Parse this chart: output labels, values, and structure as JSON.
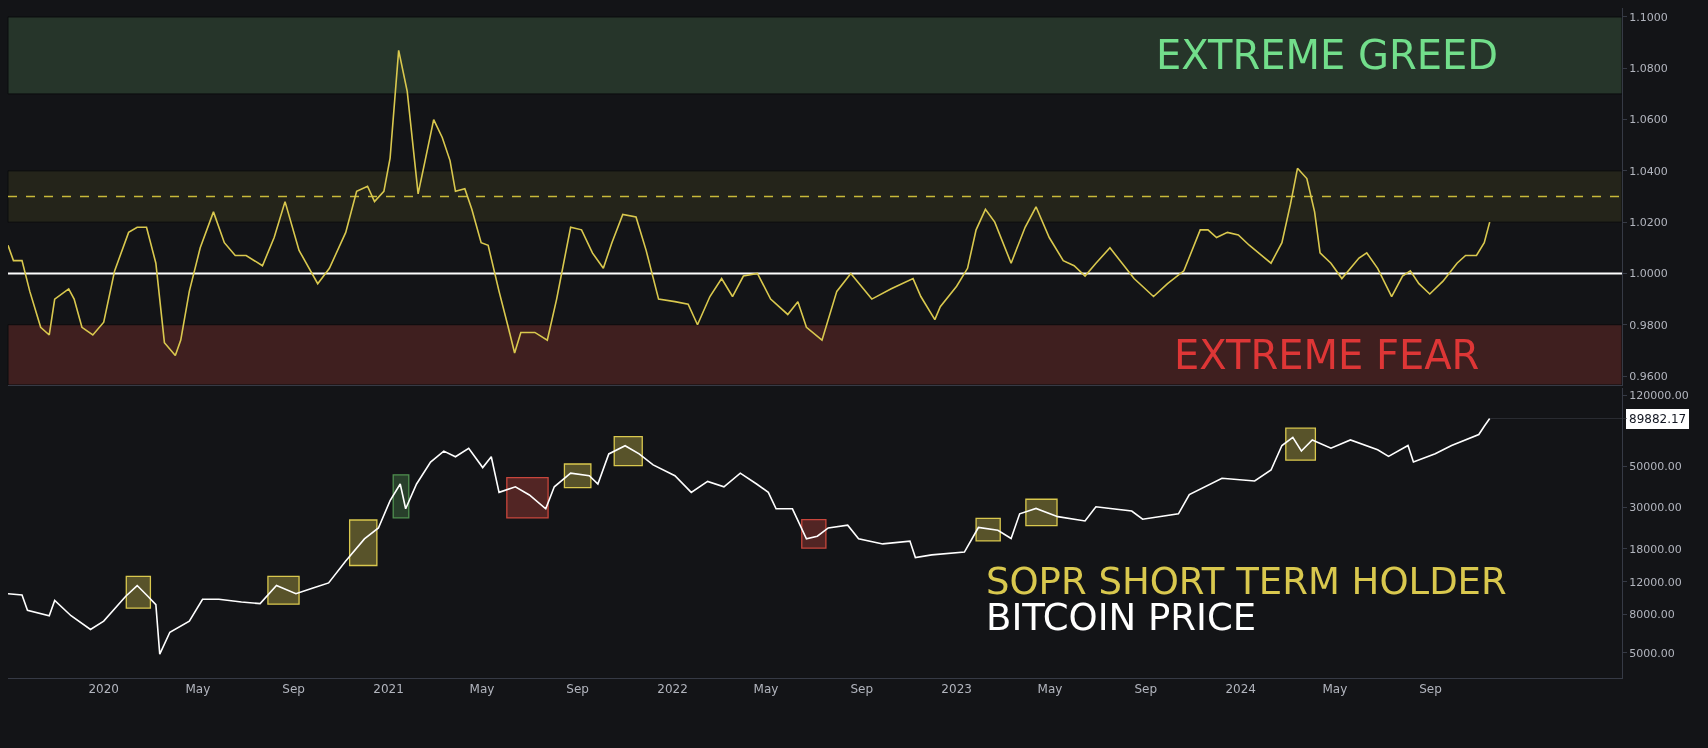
{
  "chart_data": [
    {
      "type": "line",
      "xlim": [
        "2019-08-31",
        "2025-05-05"
      ],
      "ylim": [
        0.9565,
        1.1035
      ],
      "tick_labels": "y",
      "yticks": [
        {
          "value": 0.96,
          "label": "0.9600"
        },
        {
          "value": 0.98,
          "label": "0.9800"
        },
        {
          "value": 1.0,
          "label": "1.0000"
        },
        {
          "value": 1.02,
          "label": "1.0200"
        },
        {
          "value": 1.04,
          "label": "1.0400"
        },
        {
          "value": 1.06,
          "label": "1.0600"
        },
        {
          "value": 1.08,
          "label": "1.0800"
        },
        {
          "value": 1.1,
          "label": "1.1000"
        }
      ],
      "bands": [
        {
          "axis": "y",
          "from": 1.07,
          "to": 1.1,
          "label": "EXTREME GREED",
          "color": "#26352a"
        },
        {
          "axis": "y",
          "from": 1.02,
          "to": 1.04,
          "color": "#24241a"
        },
        {
          "axis": "y",
          "from": 0.9565,
          "to": 0.98,
          "label": "EXTREME FEAR",
          "color": "#3f1f1f"
        }
      ],
      "ref_lines": [
        {
          "axis": "y",
          "value": 1.0,
          "color": "#ffffff",
          "line_style": "solid"
        },
        {
          "axis": "y",
          "value": 1.03,
          "color": "#c8b93a",
          "line_style": "dashed"
        }
      ],
      "series": [
        {
          "name": "SOPR SHORT TERM HOLDER",
          "color": "#d9c84e",
          "x": [
            "2019-08-31",
            "2019-09-07",
            "2019-09-18",
            "2019-09-28",
            "2019-10-12",
            "2019-10-23",
            "2019-10-30",
            "2019-11-17",
            "2019-11-24",
            "2019-12-04",
            "2019-12-18",
            "2020-01-01",
            "2020-01-15",
            "2020-02-02",
            "2020-02-13",
            "2020-02-25",
            "2020-03-08",
            "2020-03-19",
            "2020-04-02",
            "2020-04-09",
            "2020-04-20",
            "2020-05-04",
            "2020-05-21",
            "2020-06-04",
            "2020-06-18",
            "2020-07-02",
            "2020-07-23",
            "2020-08-07",
            "2020-08-21",
            "2020-09-08",
            "2020-10-02",
            "2020-10-17",
            "2020-11-07",
            "2020-11-21",
            "2020-12-05",
            "2020-12-14",
            "2020-12-26",
            "2021-01-03",
            "2021-01-14",
            "2021-01-25",
            "2021-02-08",
            "2021-02-17",
            "2021-02-28",
            "2021-03-11",
            "2021-03-21",
            "2021-03-28",
            "2021-04-09",
            "2021-04-18",
            "2021-04-30",
            "2021-05-09",
            "2021-05-23",
            "2021-06-03",
            "2021-06-12",
            "2021-06-20",
            "2021-07-08",
            "2021-07-24",
            "2021-08-05",
            "2021-08-23",
            "2021-09-06",
            "2021-09-20",
            "2021-10-04",
            "2021-10-15",
            "2021-10-29",
            "2021-11-15",
            "2021-11-28",
            "2021-12-14",
            "2022-01-04",
            "2022-01-21",
            "2022-02-02",
            "2022-02-18",
            "2022-03-05",
            "2022-03-19",
            "2022-04-02",
            "2022-04-20",
            "2022-05-07",
            "2022-05-29",
            "2022-06-11",
            "2022-06-22",
            "2022-07-12",
            "2022-07-31",
            "2022-08-18",
            "2022-09-14",
            "2022-10-09",
            "2022-11-06",
            "2022-11-16",
            "2022-12-04",
            "2022-12-11",
            "2023-01-01",
            "2023-01-15",
            "2023-01-26",
            "2023-02-07",
            "2023-02-19",
            "2023-03-12",
            "2023-03-30",
            "2023-04-13",
            "2023-04-30",
            "2023-05-18",
            "2023-06-01",
            "2023-06-15",
            "2023-06-29",
            "2023-07-17",
            "2023-08-17",
            "2023-09-11",
            "2023-09-29",
            "2023-10-20",
            "2023-11-10",
            "2023-11-20",
            "2023-12-01",
            "2023-12-15",
            "2023-12-29",
            "2024-01-12",
            "2024-02-09",
            "2024-02-23",
            "2024-03-05",
            "2024-03-14",
            "2024-03-26",
            "2024-04-05",
            "2024-04-12",
            "2024-04-26",
            "2024-05-10",
            "2024-06-01",
            "2024-06-11",
            "2024-06-25",
            "2024-07-13",
            "2024-07-27",
            "2024-08-06",
            "2024-08-17",
            "2024-08-31",
            "2024-09-17",
            "2024-10-05",
            "2024-10-16",
            "2024-10-30",
            "2024-11-09",
            "2024-11-16"
          ],
          "values": [
            1.011,
            1.005,
            1.005,
            0.993,
            0.979,
            0.976,
            0.99,
            0.994,
            0.99,
            0.979,
            0.976,
            0.981,
            1.001,
            1.016,
            1.018,
            1.018,
            1.004,
            0.973,
            0.968,
            0.974,
            0.993,
            1.01,
            1.024,
            1.012,
            1.007,
            1.007,
            1.003,
            1.014,
            1.028,
            1.009,
            0.996,
            1.002,
            1.016,
            1.032,
            1.034,
            1.028,
            1.032,
            1.045,
            1.087,
            1.071,
            1.031,
            1.044,
            1.06,
            1.053,
            1.044,
            1.032,
            1.033,
            1.025,
            1.012,
            1.011,
            0.993,
            0.98,
            0.969,
            0.977,
            0.977,
            0.974,
            0.99,
            1.018,
            1.017,
            1.008,
            1.002,
            1.012,
            1.023,
            1.022,
            1.009,
            0.99,
            0.989,
            0.988,
            0.98,
            0.991,
            0.998,
            0.991,
            0.999,
            1.0,
            0.99,
            0.984,
            0.989,
            0.979,
            0.974,
            0.993,
            1.0,
            0.99,
            0.994,
            0.998,
            0.991,
            0.982,
            0.987,
            0.995,
            1.002,
            1.017,
            1.025,
            1.02,
            1.004,
            1.018,
            1.026,
            1.014,
            1.005,
            1.003,
            0.999,
            1.004,
            1.01,
            0.998,
            0.991,
            0.996,
            1.001,
            1.017,
            1.017,
            1.014,
            1.016,
            1.015,
            1.011,
            1.004,
            1.012,
            1.027,
            1.041,
            1.037,
            1.024,
            1.008,
            1.004,
            0.998,
            1.006,
            1.008,
            1.002,
            0.991,
            0.999,
            1.001,
            0.996,
            0.992,
            0.997,
            1.004,
            1.007,
            1.007,
            1.012,
            1.02
          ]
        }
      ]
    },
    {
      "type": "line",
      "log": "y",
      "legend": "bottom right",
      "xlim": [
        "2019-08-31",
        "2025-05-05"
      ],
      "ylim": [
        3660,
        131000
      ],
      "xticks": [
        {
          "value": "2020-01-01",
          "label": "2020"
        },
        {
          "value": "2020-05-01",
          "label": "May"
        },
        {
          "value": "2020-09-01",
          "label": "Sep"
        },
        {
          "value": "2021-01-01",
          "label": "2021"
        },
        {
          "value": "2021-05-01",
          "label": "May"
        },
        {
          "value": "2021-09-01",
          "label": "Sep"
        },
        {
          "value": "2022-01-01",
          "label": "2022"
        },
        {
          "value": "2022-05-01",
          "label": "May"
        },
        {
          "value": "2022-09-01",
          "label": "Sep"
        },
        {
          "value": "2023-01-01",
          "label": "2023"
        },
        {
          "value": "2023-05-01",
          "label": "May"
        },
        {
          "value": "2023-09-01",
          "label": "Sep"
        },
        {
          "value": "2024-01-01",
          "label": "2024"
        },
        {
          "value": "2024-05-01",
          "label": "May"
        },
        {
          "value": "2024-09-01",
          "label": "Sep"
        }
      ],
      "yticks": [
        {
          "value": 5000,
          "label": "5000.00"
        },
        {
          "value": 8000,
          "label": "8000.00"
        },
        {
          "value": 12000,
          "label": "12000.00"
        },
        {
          "value": 18000,
          "label": "18000.00"
        },
        {
          "value": 30000,
          "label": "30000.00"
        },
        {
          "value": 50000,
          "label": "50000.00"
        },
        {
          "value": 120000,
          "label": "120000.00"
        }
      ],
      "annotations": [
        {
          "text": "89882.17",
          "x": "2024-11-16",
          "y": 89882.17
        }
      ],
      "bands": [
        {
          "axis": "x",
          "from": "2020-01-30",
          "to": "2020-03-01",
          "color": "#d9c84e"
        },
        {
          "axis": "x",
          "from": "2020-07-30",
          "to": "2020-09-08",
          "color": "#d9c84e"
        },
        {
          "axis": "x",
          "from": "2020-11-12",
          "to": "2020-12-17",
          "color": "#d9c84e"
        },
        {
          "axis": "x",
          "from": "2021-01-07",
          "to": "2021-01-27",
          "color": "#4f8f4f"
        },
        {
          "axis": "x",
          "from": "2021-06-02",
          "to": "2021-07-25",
          "color": "#c8463c"
        },
        {
          "axis": "x",
          "from": "2021-08-15",
          "to": "2021-09-18",
          "color": "#d9c84e"
        },
        {
          "axis": "x",
          "from": "2021-10-18",
          "to": "2021-11-23",
          "color": "#d9c84e"
        },
        {
          "axis": "x",
          "from": "2022-06-16",
          "to": "2022-07-17",
          "color": "#c8463c"
        },
        {
          "axis": "x",
          "from": "2023-01-26",
          "to": "2023-02-26",
          "color": "#d9c84e"
        },
        {
          "axis": "x",
          "from": "2023-03-31",
          "to": "2023-05-10",
          "color": "#d9c84e"
        },
        {
          "axis": "x",
          "from": "2024-02-28",
          "to": "2024-04-06",
          "color": "#d9c84e"
        }
      ],
      "series": [
        {
          "name": "BITCOIN PRICE",
          "color": "#ffffff",
          "x": [
            "2019-08-31",
            "2019-09-18",
            "2019-09-25",
            "2019-10-23",
            "2019-10-30",
            "2019-11-20",
            "2019-12-15",
            "2020-01-01",
            "2020-01-29",
            "2020-02-13",
            "2020-02-27",
            "2020-03-08",
            "2020-03-13",
            "2020-03-26",
            "2020-04-20",
            "2020-05-07",
            "2020-05-28",
            "2020-06-26",
            "2020-07-20",
            "2020-08-10",
            "2020-09-04",
            "2020-09-25",
            "2020-10-16",
            "2020-11-07",
            "2020-12-01",
            "2020-12-19",
            "2021-01-03",
            "2021-01-16",
            "2021-01-23",
            "2021-02-06",
            "2021-02-24",
            "2021-03-13",
            "2021-03-28",
            "2021-04-14",
            "2021-05-02",
            "2021-05-13",
            "2021-05-23",
            "2021-06-13",
            "2021-07-01",
            "2021-07-22",
            "2021-08-02",
            "2021-08-23",
            "2021-09-16",
            "2021-09-27",
            "2021-10-11",
            "2021-11-01",
            "2021-11-19",
            "2021-12-07",
            "2022-01-04",
            "2022-01-25",
            "2022-02-15",
            "2022-03-08",
            "2022-03-29",
            "2022-04-19",
            "2022-05-04",
            "2022-05-14",
            "2022-06-04",
            "2022-06-22",
            "2022-07-06",
            "2022-07-20",
            "2022-08-14",
            "2022-08-28",
            "2022-09-28",
            "2022-11-02",
            "2022-11-09",
            "2022-11-30",
            "2023-01-11",
            "2023-01-29",
            "2023-02-23",
            "2023-03-12",
            "2023-03-23",
            "2023-04-13",
            "2023-05-11",
            "2023-06-15",
            "2023-06-29",
            "2023-08-14",
            "2023-08-28",
            "2023-10-13",
            "2023-10-27",
            "2023-12-08",
            "2024-01-19",
            "2024-02-09",
            "2024-02-23",
            "2024-03-08",
            "2024-03-19",
            "2024-04-02",
            "2024-04-26",
            "2024-05-21",
            "2024-06-25",
            "2024-07-09",
            "2024-08-03",
            "2024-08-10",
            "2024-09-07",
            "2024-09-28",
            "2024-11-02",
            "2024-11-09",
            "2024-11-16"
          ],
          "values": [
            10350,
            10200,
            8440,
            7890,
            9530,
            7890,
            6660,
            7380,
            10000,
            11450,
            10000,
            9040,
            4910,
            6440,
            7380,
            9670,
            9670,
            9350,
            9160,
            11450,
            10350,
            11070,
            11830,
            15520,
            20370,
            23300,
            32660,
            40090,
            29520,
            40090,
            52480,
            60120,
            56100,
            62230,
            49090,
            56100,
            36140,
            38730,
            34990,
            29520,
            38730,
            45810,
            44360,
            40090,
            58080,
            64270,
            58080,
            50700,
            44360,
            36140,
            41400,
            38730,
            45810,
            40090,
            36140,
            29520,
            29520,
            20370,
            21040,
            23300,
            24100,
            20370,
            19140,
            19810,
            16180,
            16710,
            17300,
            23440,
            22650,
            20460,
            27730,
            29650,
            26790,
            25410,
            30270,
            28710,
            25940,
            27730,
            35160,
            43050,
            41590,
            47640,
            64420,
            71290,
            60260,
            69020,
            62370,
            69020,
            61090,
            56360,
            64420,
            52600,
            58210,
            64420,
            73790,
            81660,
            89882.17
          ]
        }
      ]
    }
  ]
}
